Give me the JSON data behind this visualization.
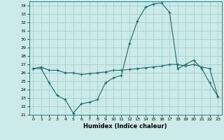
{
  "title": "",
  "xlabel": "Humidex (Indice chaleur)",
  "background_color": "#cceae7",
  "grid_color": "#aacccc",
  "line_color": "#1a6b6b",
  "xlim": [
    -0.5,
    23.5
  ],
  "ylim": [
    21,
    34.5
  ],
  "yticks": [
    21,
    22,
    23,
    24,
    25,
    26,
    27,
    28,
    29,
    30,
    31,
    32,
    33,
    34
  ],
  "xticks": [
    0,
    1,
    2,
    3,
    4,
    5,
    6,
    7,
    8,
    9,
    10,
    11,
    12,
    13,
    14,
    15,
    16,
    17,
    18,
    19,
    20,
    21,
    22,
    23
  ],
  "series1_x": [
    0,
    1,
    2,
    3,
    4,
    5,
    6,
    7,
    8,
    9,
    10,
    11,
    12,
    13,
    14,
    15,
    16,
    17,
    18,
    19,
    20,
    21,
    22,
    23
  ],
  "series1_y": [
    26.5,
    26.7,
    26.3,
    26.3,
    26.0,
    26.0,
    25.8,
    25.9,
    26.0,
    26.1,
    26.3,
    26.3,
    26.4,
    26.5,
    26.6,
    26.7,
    26.8,
    27.0,
    27.0,
    26.8,
    27.0,
    26.7,
    26.5,
    23.2
  ],
  "series2_x": [
    0,
    1,
    2,
    3,
    4,
    5,
    6,
    7,
    8,
    9,
    10,
    11,
    12,
    13,
    14,
    15,
    16,
    17,
    18,
    19,
    20,
    21,
    22,
    23
  ],
  "series2_y": [
    26.5,
    26.5,
    24.8,
    23.3,
    22.8,
    21.2,
    22.3,
    22.5,
    22.8,
    24.8,
    25.4,
    25.7,
    29.5,
    32.2,
    33.8,
    34.2,
    34.3,
    33.2,
    26.5,
    27.0,
    27.5,
    26.5,
    24.8,
    23.2
  ]
}
